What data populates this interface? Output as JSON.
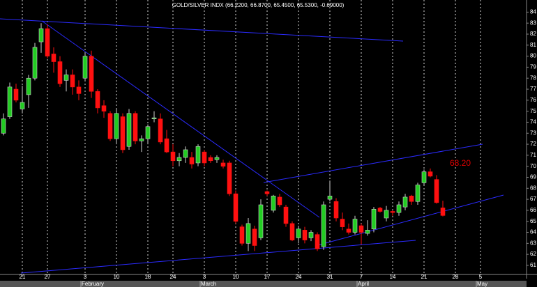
{
  "chart_data": {
    "type": "candlestick",
    "title": "GOLD/SILVER INDX (66.2200, 66.8700, 65.4500, 65.5300, -0.69000)",
    "annotation": "68.20",
    "annotation_color": "#e00000",
    "up_color": "#22cc22",
    "down_color": "#ff1010",
    "grid": true,
    "ylim": [
      60.3,
      85.1
    ],
    "yticks": [
      61,
      62,
      63,
      64,
      65,
      66,
      67,
      68,
      69,
      70,
      71,
      72,
      73,
      74,
      75,
      76,
      77,
      78,
      79,
      80,
      81,
      82,
      83,
      84
    ],
    "categories": [
      null,
      null,
      null,
      "21",
      null,
      null,
      null,
      "27",
      null,
      null,
      null,
      null,
      null,
      "3",
      null,
      null,
      null,
      null,
      "10",
      null,
      null,
      null,
      null,
      "18",
      null,
      null,
      null,
      "24",
      null,
      null,
      null,
      null,
      "3",
      null,
      null,
      null,
      null,
      "10",
      null,
      null,
      null,
      null,
      "17",
      null,
      null,
      null,
      null,
      "24",
      null,
      null,
      null,
      null,
      "31",
      null,
      null,
      null,
      null,
      "7",
      null,
      null,
      null,
      null,
      "14",
      null,
      null,
      null,
      null,
      "21",
      null,
      null,
      null,
      null,
      "28",
      null,
      null,
      null,
      "5"
    ],
    "months": [
      "February",
      "March",
      "April",
      "May"
    ],
    "open": [
      73.0,
      74.5,
      77.0,
      75.2,
      76.5,
      78.0,
      81.3,
      82.5,
      80.2,
      79.5,
      77.8,
      78.3,
      77.2,
      78.0,
      80.0,
      76.8,
      75.5,
      74.8,
      72.5,
      74.5,
      71.8,
      74.8,
      72.3,
      72.5,
      74.3,
      74.3,
      72.5,
      71.3,
      70.5,
      70.8,
      70.8,
      70.3,
      71.3,
      70.8,
      70.6,
      70.3,
      70.3,
      67.5,
      64.5,
      63.0,
      64.3,
      63.5,
      67.7,
      66.0,
      67.2,
      66.3,
      64.8,
      63.5,
      64.2,
      63.5,
      63.8,
      62.7,
      67.0,
      66.8,
      65.2,
      64.3,
      64.0,
      64.6,
      63.9,
      64.3,
      66.2,
      65.3,
      65.9,
      65.8,
      66.3,
      67.3,
      66.8,
      68.5,
      69.5,
      68.8,
      66.22,
      null,
      null,
      null,
      null,
      null,
      null
    ],
    "high": [
      74.8,
      77.6,
      77.5,
      77.3,
      78.3,
      81.2,
      83.0,
      82.9,
      80.8,
      80.0,
      78.8,
      78.8,
      77.8,
      80.3,
      80.5,
      77.0,
      76.0,
      75.0,
      75.2,
      74.8,
      75.2,
      75.0,
      72.8,
      73.8,
      75.0,
      74.8,
      73.3,
      72.0,
      71.2,
      71.8,
      71.3,
      72.0,
      71.5,
      71.0,
      71.0,
      70.6,
      70.5,
      67.8,
      64.7,
      65.3,
      64.6,
      67.0,
      67.8,
      67.4,
      67.5,
      66.5,
      65.0,
      64.6,
      64.5,
      64.2,
      64.0,
      66.8,
      68.7,
      67.1,
      65.8,
      64.8,
      65.5,
      64.8,
      65.1,
      66.3,
      66.3,
      66.4,
      66.0,
      66.8,
      67.5,
      67.4,
      68.5,
      69.7,
      69.8,
      69.2,
      66.87,
      null,
      null,
      null,
      null,
      null,
      null
    ],
    "low": [
      72.8,
      74.3,
      75.8,
      74.8,
      75.3,
      77.8,
      80.3,
      79.8,
      78.5,
      77.2,
      76.8,
      76.5,
      76.0,
      77.8,
      76.2,
      74.8,
      74.4,
      72.3,
      72.0,
      71.2,
      71.5,
      72.0,
      71.3,
      72.0,
      74.0,
      72.0,
      71.2,
      70.0,
      70.0,
      70.3,
      69.8,
      70.0,
      70.0,
      70.3,
      70.3,
      69.8,
      67.3,
      64.8,
      62.8,
      62.3,
      62.3,
      63.3,
      67.3,
      65.8,
      66.3,
      64.5,
      63.2,
      63.0,
      63.0,
      63.2,
      62.3,
      62.4,
      66.8,
      65.0,
      64.2,
      63.8,
      63.8,
      62.9,
      63.7,
      64.0,
      65.8,
      65.0,
      65.5,
      65.5,
      66.0,
      66.5,
      66.5,
      68.3,
      69.0,
      66.6,
      65.45,
      null,
      null,
      null,
      null,
      null,
      null
    ],
    "close": [
      74.3,
      77.2,
      76.0,
      75.8,
      78.0,
      80.8,
      82.5,
      80.0,
      79.5,
      77.5,
      78.3,
      77.2,
      76.6,
      80.0,
      76.8,
      75.3,
      75.0,
      72.5,
      74.8,
      71.5,
      74.8,
      72.3,
      72.5,
      73.6,
      74.4,
      72.2,
      71.3,
      70.5,
      70.8,
      71.5,
      70.2,
      71.8,
      70.3,
      70.5,
      70.8,
      70.0,
      67.5,
      65.0,
      63.0,
      64.8,
      62.8,
      66.5,
      67.5,
      67.3,
      66.5,
      64.8,
      63.3,
      64.3,
      63.3,
      64.0,
      62.5,
      66.5,
      67.3,
      65.3,
      64.5,
      64.0,
      65.2,
      64.0,
      64.2,
      66.1,
      65.9,
      66.0,
      65.8,
      66.5,
      67.2,
      66.8,
      68.3,
      69.5,
      69.1,
      66.7,
      65.53,
      null,
      null,
      null,
      null,
      null,
      null
    ]
  }
}
